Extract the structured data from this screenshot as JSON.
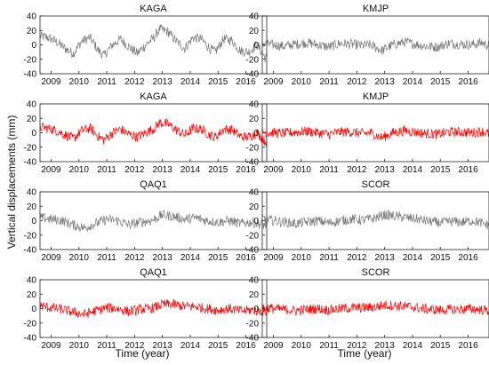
{
  "figure": {
    "ylabel": "Vertical displacements (mm)",
    "xlabel": "Time (year)"
  },
  "colors": {
    "gray_series": "#7a7a7a",
    "red_series": "#ff0000",
    "axis": "#222222"
  },
  "chart_data": [
    {
      "type": "line",
      "title": "KAGA",
      "color": "#7a7a7a",
      "xlim": [
        2008.6,
        2016.75
      ],
      "ylim": [
        -40,
        40
      ],
      "xticks": [
        "2009",
        "2010",
        "2011",
        "2012",
        "2013",
        "2014",
        "2015",
        "2016"
      ],
      "yticks": [
        "-40",
        "-20",
        "0",
        "20",
        "40"
      ],
      "series": [
        {
          "x": [
            2008.6,
            2008.9,
            2009.2,
            2009.5,
            2009.8,
            2010.1,
            2010.4,
            2010.7,
            2010.9,
            2011.2,
            2011.5,
            2011.8,
            2012.1,
            2012.4,
            2012.7,
            2012.9,
            2013.2,
            2013.5,
            2013.8,
            2014.1,
            2014.4,
            2014.7,
            2014.9,
            2015.2,
            2015.5,
            2015.8,
            2016.1,
            2016.4,
            2016.7
          ],
          "y": [
            12,
            10,
            4,
            -5,
            -12,
            5,
            10,
            -8,
            -15,
            0,
            8,
            -3,
            -12,
            0,
            10,
            22,
            18,
            5,
            -5,
            10,
            8,
            -5,
            -10,
            8,
            6,
            -8,
            -10,
            0,
            -18
          ]
        }
      ]
    },
    {
      "type": "line",
      "title": "KMJP",
      "color": "#7a7a7a",
      "xlim": [
        2008.6,
        2016.75
      ],
      "ylim": [
        -40,
        40
      ],
      "xticks": [
        "2009",
        "2010",
        "2011",
        "2012",
        "2013",
        "2014",
        "2015",
        "2016"
      ],
      "yticks": [
        "-40",
        "-20",
        "0",
        "20",
        "40"
      ],
      "series": [
        {
          "x": [
            2008.6,
            2009.0,
            2009.4,
            2009.8,
            2010.2,
            2010.6,
            2011.0,
            2011.4,
            2011.8,
            2012.2,
            2012.5,
            2012.9,
            2013.3,
            2013.7,
            2014.1,
            2014.5,
            2014.9,
            2015.3,
            2015.7,
            2016.1,
            2016.5,
            2016.7
          ],
          "y": [
            2,
            0,
            -2,
            1,
            3,
            0,
            -3,
            2,
            1,
            -1,
            0,
            -8,
            0,
            4,
            1,
            -2,
            -3,
            2,
            1,
            0,
            3,
            -1
          ]
        }
      ]
    },
    {
      "type": "line",
      "title": "KAGA",
      "color": "#ff0000",
      "xlim": [
        2008.6,
        2016.75
      ],
      "ylim": [
        -40,
        40
      ],
      "xticks": [
        "2009",
        "2010",
        "2011",
        "2012",
        "2013",
        "2014",
        "2015",
        "2016"
      ],
      "yticks": [
        "-40",
        "-20",
        "0",
        "20",
        "40"
      ],
      "series": [
        {
          "x": [
            2008.6,
            2008.9,
            2009.2,
            2009.5,
            2009.8,
            2010.1,
            2010.4,
            2010.7,
            2010.9,
            2011.2,
            2011.5,
            2011.8,
            2012.1,
            2012.4,
            2012.7,
            2012.9,
            2013.2,
            2013.5,
            2013.8,
            2014.1,
            2014.4,
            2014.7,
            2014.9,
            2015.2,
            2015.5,
            2015.8,
            2016.1,
            2016.4,
            2016.7
          ],
          "y": [
            8,
            6,
            3,
            -3,
            -8,
            3,
            6,
            -5,
            -10,
            0,
            5,
            -2,
            -6,
            0,
            6,
            14,
            12,
            4,
            -3,
            6,
            5,
            -3,
            -6,
            5,
            4,
            -5,
            -6,
            0,
            -12
          ]
        }
      ]
    },
    {
      "type": "line",
      "title": "KMJP",
      "color": "#ff0000",
      "xlim": [
        2008.6,
        2016.75
      ],
      "ylim": [
        -40,
        40
      ],
      "xticks": [
        "2009",
        "2010",
        "2011",
        "2012",
        "2013",
        "2014",
        "2015",
        "2016"
      ],
      "yticks": [
        "-40",
        "-20",
        "0",
        "20",
        "40"
      ],
      "series": [
        {
          "x": [
            2008.6,
            2009.0,
            2009.4,
            2009.8,
            2010.2,
            2010.6,
            2011.0,
            2011.4,
            2011.8,
            2012.2,
            2012.5,
            2012.9,
            2013.3,
            2013.7,
            2014.1,
            2014.5,
            2014.9,
            2015.3,
            2015.7,
            2016.1,
            2016.5,
            2016.7
          ],
          "y": [
            1,
            0,
            -1,
            1,
            2,
            0,
            -2,
            1,
            1,
            -1,
            0,
            -7,
            0,
            3,
            1,
            -1,
            -2,
            1,
            1,
            0,
            2,
            -1
          ]
        }
      ]
    },
    {
      "type": "line",
      "title": "QAQ1",
      "color": "#7a7a7a",
      "xlim": [
        2008.6,
        2016.75
      ],
      "ylim": [
        -40,
        40
      ],
      "xticks": [
        "2009",
        "2010",
        "2011",
        "2012",
        "2013",
        "2014",
        "2015",
        "2016"
      ],
      "yticks": [
        "-40",
        "-20",
        "0",
        "20",
        "40"
      ],
      "series": [
        {
          "x": [
            2008.6,
            2009.0,
            2009.4,
            2009.8,
            2010.2,
            2010.6,
            2011.0,
            2011.4,
            2011.8,
            2012.2,
            2012.6,
            2013.0,
            2013.4,
            2013.8,
            2014.2,
            2014.6,
            2015.0,
            2015.4,
            2015.8,
            2016.2,
            2016.7
          ],
          "y": [
            4,
            2,
            0,
            -6,
            -10,
            -4,
            2,
            0,
            -6,
            -2,
            0,
            8,
            6,
            2,
            4,
            0,
            -2,
            0,
            -4,
            -2,
            -6
          ]
        }
      ]
    },
    {
      "type": "line",
      "title": "SCOR",
      "color": "#7a7a7a",
      "xlim": [
        2008.6,
        2016.75
      ],
      "ylim": [
        -40,
        40
      ],
      "xticks": [
        "2009",
        "2010",
        "2011",
        "2012",
        "2013",
        "2014",
        "2015",
        "2016"
      ],
      "yticks": [
        "-40",
        "-20",
        "0",
        "20",
        "40"
      ],
      "series": [
        {
          "x": [
            2008.6,
            2009.0,
            2009.4,
            2009.8,
            2010.2,
            2010.6,
            2011.0,
            2011.4,
            2011.8,
            2012.2,
            2012.6,
            2013.0,
            2013.4,
            2013.8,
            2014.2,
            2014.6,
            2015.0,
            2015.4,
            2015.8,
            2016.2,
            2016.7
          ],
          "y": [
            3,
            0,
            -2,
            -4,
            -2,
            0,
            -3,
            0,
            2,
            1,
            3,
            8,
            6,
            4,
            2,
            -1,
            -3,
            -1,
            -2,
            0,
            -6
          ]
        }
      ]
    },
    {
      "type": "line",
      "title": "QAQ1",
      "color": "#ff0000",
      "xlim": [
        2008.6,
        2016.75
      ],
      "ylim": [
        -40,
        40
      ],
      "xticks": [
        "2009",
        "2010",
        "2011",
        "2012",
        "2013",
        "2014",
        "2015",
        "2016"
      ],
      "yticks": [
        "-40",
        "-20",
        "0",
        "20",
        "40"
      ],
      "series": [
        {
          "x": [
            2008.6,
            2009.0,
            2009.4,
            2009.8,
            2010.2,
            2010.6,
            2011.0,
            2011.4,
            2011.8,
            2012.2,
            2012.6,
            2013.0,
            2013.4,
            2013.8,
            2014.2,
            2014.6,
            2015.0,
            2015.4,
            2015.8,
            2016.2,
            2016.7
          ],
          "y": [
            4,
            1,
            -1,
            -5,
            -8,
            -3,
            1,
            0,
            -4,
            -1,
            0,
            6,
            6,
            3,
            3,
            0,
            -2,
            0,
            -3,
            -2,
            -4
          ]
        }
      ]
    },
    {
      "type": "line",
      "title": "SCOR",
      "color": "#ff0000",
      "xlim": [
        2008.6,
        2016.75
      ],
      "ylim": [
        -40,
        40
      ],
      "xticks": [
        "2009",
        "2010",
        "2011",
        "2012",
        "2013",
        "2014",
        "2015",
        "2016"
      ],
      "yticks": [
        "-40",
        "-20",
        "0",
        "20",
        "40"
      ],
      "series": [
        {
          "x": [
            2008.6,
            2009.0,
            2009.4,
            2009.8,
            2010.2,
            2010.6,
            2011.0,
            2011.4,
            2011.8,
            2012.2,
            2012.6,
            2013.0,
            2013.4,
            2013.8,
            2014.2,
            2014.6,
            2015.0,
            2015.4,
            2015.8,
            2016.2,
            2016.7
          ],
          "y": [
            2,
            0,
            -1,
            -3,
            -1,
            0,
            -2,
            0,
            1,
            1,
            2,
            5,
            4,
            3,
            1,
            -1,
            -2,
            -1,
            -1,
            0,
            -3
          ]
        }
      ]
    }
  ]
}
